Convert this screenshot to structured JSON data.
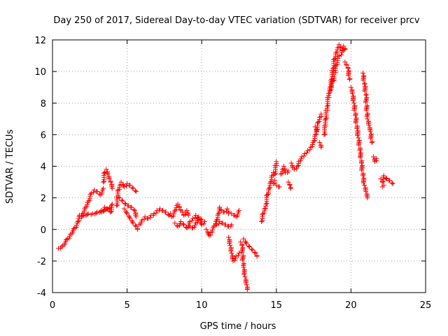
{
  "chart_data": {
    "type": "scatter",
    "title": "Day 250 of 2017, Sidereal Day-to-day VTEC variation (SDTVAR) for receiver prcv",
    "xlabel": "GPS time / hours",
    "ylabel": "SDTVAR / TECUs",
    "xlim": [
      0,
      25
    ],
    "ylim": [
      -4,
      12
    ],
    "xticks": [
      0,
      5,
      10,
      15,
      20,
      25
    ],
    "yticks": [
      -4,
      -2,
      0,
      2,
      4,
      6,
      8,
      10,
      12
    ],
    "grid": true,
    "marker": "plus",
    "color": "#ff0000",
    "series": [
      {
        "segments": [
          [
            [
              0.4,
              -1.2
            ],
            [
              0.7,
              -1.0
            ],
            [
              1.0,
              -0.6
            ],
            [
              1.2,
              -0.3
            ],
            [
              1.5,
              0.1
            ],
            [
              1.7,
              0.5
            ],
            [
              1.8,
              0.9
            ],
            [
              2.0,
              1.0
            ],
            [
              2.2,
              1.4
            ],
            [
              2.4,
              1.8
            ],
            [
              2.6,
              2.3
            ],
            [
              2.8,
              2.5
            ],
            [
              3.0,
              2.4
            ],
            [
              3.2,
              2.2
            ],
            [
              3.4,
              2.6
            ]
          ],
          [
            [
              1.8,
              0.8
            ],
            [
              2.1,
              0.9
            ],
            [
              2.4,
              1.0
            ],
            [
              2.7,
              1.0
            ],
            [
              3.0,
              1.1
            ],
            [
              3.3,
              1.2
            ],
            [
              3.6,
              1.3
            ],
            [
              3.9,
              1.4
            ]
          ],
          [
            [
              3.4,
              3.0
            ],
            [
              3.5,
              3.6
            ],
            [
              3.6,
              3.8
            ],
            [
              3.7,
              3.5
            ],
            [
              3.8,
              3.2
            ],
            [
              3.9,
              3.0
            ],
            [
              4.0,
              2.6
            ]
          ],
          [
            [
              3.3,
              1.1
            ],
            [
              3.5,
              1.4
            ],
            [
              3.7,
              1.3
            ],
            [
              3.9,
              1.1
            ],
            [
              4.0,
              1.6
            ]
          ],
          [
            [
              4.3,
              1.5
            ],
            [
              4.4,
              2.5
            ],
            [
              4.5,
              2.8
            ],
            [
              4.6,
              3.0
            ],
            [
              4.8,
              2.7
            ],
            [
              5.0,
              2.9
            ],
            [
              5.2,
              2.8
            ],
            [
              5.4,
              2.6
            ],
            [
              5.6,
              2.4
            ]
          ],
          [
            [
              4.5,
              2.0
            ],
            [
              4.7,
              1.8
            ],
            [
              4.9,
              1.6
            ],
            [
              5.1,
              1.5
            ],
            [
              5.3,
              1.4
            ],
            [
              5.5,
              1.2
            ],
            [
              5.6,
              0.8
            ]
          ],
          [
            [
              4.8,
              1.3
            ],
            [
              5.0,
              1.0
            ],
            [
              5.2,
              0.7
            ],
            [
              5.4,
              0.4
            ],
            [
              5.6,
              0.2
            ],
            [
              5.7,
              0.0
            ]
          ],
          [
            [
              5.8,
              0.3
            ],
            [
              6.0,
              0.6
            ],
            [
              6.2,
              0.8
            ],
            [
              6.4,
              0.7
            ],
            [
              6.6,
              0.9
            ],
            [
              6.8,
              1.0
            ],
            [
              7.0,
              1.2
            ],
            [
              7.2,
              1.3
            ],
            [
              7.4,
              1.2
            ],
            [
              7.6,
              1.1
            ],
            [
              7.8,
              0.9
            ]
          ],
          [
            [
              7.9,
              1.0
            ],
            [
              8.0,
              0.8
            ],
            [
              8.2,
              1.2
            ],
            [
              8.3,
              1.5
            ],
            [
              8.4,
              1.6
            ],
            [
              8.5,
              1.4
            ],
            [
              8.6,
              1.2
            ],
            [
              8.7,
              1.1
            ],
            [
              8.8,
              0.9
            ],
            [
              8.9,
              1.1
            ],
            [
              9.0,
              1.2
            ],
            [
              9.1,
              0.9
            ]
          ],
          [
            [
              8.2,
              0.4
            ],
            [
              8.4,
              0.2
            ],
            [
              8.6,
              0.5
            ],
            [
              8.8,
              0.3
            ],
            [
              9.0,
              0.1
            ],
            [
              9.2,
              0.5
            ],
            [
              9.4,
              0.7
            ],
            [
              9.6,
              0.9
            ],
            [
              9.8,
              0.6
            ],
            [
              10.0,
              0.3
            ],
            [
              10.2,
              0.5
            ]
          ],
          [
            [
              9.2,
              0.2
            ],
            [
              9.4,
              0.1
            ],
            [
              9.6,
              0.4
            ],
            [
              9.8,
              0.8
            ],
            [
              10.0,
              0.6
            ]
          ],
          [
            [
              10.3,
              0.0
            ],
            [
              10.5,
              -0.4
            ],
            [
              10.6,
              -0.2
            ],
            [
              10.8,
              0.2
            ],
            [
              11.0,
              0.6
            ],
            [
              11.1,
              1.0
            ],
            [
              11.2,
              1.4
            ],
            [
              11.3,
              1.2
            ],
            [
              11.5,
              1.1
            ],
            [
              11.7,
              1.3
            ],
            [
              11.8,
              1.0
            ]
          ],
          [
            [
              11.0,
              0.3
            ],
            [
              11.2,
              0.5
            ],
            [
              11.4,
              0.4
            ],
            [
              11.6,
              0.3
            ],
            [
              11.8,
              0.2
            ],
            [
              12.0,
              0.3
            ]
          ],
          [
            [
              12.0,
              1.0
            ],
            [
              12.2,
              0.9
            ],
            [
              12.3,
              0.8
            ],
            [
              12.5,
              1.2
            ]
          ],
          [
            [
              11.8,
              -0.5
            ],
            [
              11.9,
              -1.0
            ],
            [
              12.0,
              -1.5
            ],
            [
              12.1,
              -2.0
            ],
            [
              12.3,
              -1.7
            ],
            [
              12.5,
              -1.5
            ]
          ],
          [
            [
              12.6,
              -0.8
            ],
            [
              12.7,
              -1.0
            ],
            [
              12.8,
              -2.4
            ],
            [
              12.9,
              -3.0
            ],
            [
              13.0,
              -3.5
            ],
            [
              13.05,
              -3.8
            ]
          ],
          [
            [
              12.8,
              -0.6
            ],
            [
              13.0,
              -0.9
            ],
            [
              13.2,
              -1.1
            ],
            [
              13.4,
              -1.3
            ],
            [
              13.6,
              -1.5
            ],
            [
              13.7,
              -1.7
            ]
          ],
          [
            [
              14.0,
              0.5
            ],
            [
              14.1,
              1.0
            ],
            [
              14.2,
              1.3
            ],
            [
              14.3,
              1.6
            ],
            [
              14.4,
              2.2
            ],
            [
              14.5,
              2.6
            ],
            [
              14.6,
              3.0
            ],
            [
              14.7,
              3.4
            ],
            [
              14.8,
              3.6
            ],
            [
              14.9,
              3.5
            ],
            [
              15.0,
              4.3
            ]
          ],
          [
            [
              14.8,
              2.9
            ],
            [
              14.9,
              3.1
            ]
          ],
          [
            [
              15.0,
              2.8
            ],
            [
              15.2,
              2.7
            ]
          ],
          [
            [
              15.3,
              3.5
            ],
            [
              15.4,
              3.8
            ],
            [
              15.5,
              4.0
            ],
            [
              15.6,
              3.6
            ],
            [
              15.8,
              3.7
            ]
          ],
          [
            [
              15.8,
              3.0
            ],
            [
              15.9,
              2.8
            ],
            [
              15.95,
              2.6
            ]
          ],
          [
            [
              16.0,
              4.2
            ],
            [
              16.1,
              3.9
            ]
          ],
          [
            [
              16.2,
              3.8
            ],
            [
              16.4,
              4.0
            ],
            [
              16.5,
              4.3
            ],
            [
              16.7,
              4.6
            ],
            [
              16.9,
              4.8
            ],
            [
              17.1,
              5.0
            ],
            [
              17.3,
              5.2
            ],
            [
              17.5,
              5.6
            ],
            [
              17.6,
              6.0
            ],
            [
              17.7,
              6.3
            ],
            [
              17.8,
              6.8
            ],
            [
              17.9,
              7.1
            ],
            [
              18.0,
              7.3
            ]
          ],
          [
            [
              17.6,
              6.5
            ],
            [
              17.7,
              6.2
            ]
          ],
          [
            [
              17.9,
              5.5
            ],
            [
              18.0,
              5.2
            ]
          ],
          [
            [
              18.2,
              6.0
            ],
            [
              18.3,
              7.0
            ],
            [
              18.4,
              7.8
            ],
            [
              18.5,
              8.6
            ],
            [
              18.6,
              9.0
            ],
            [
              18.7,
              9.5
            ],
            [
              18.8,
              10.2
            ],
            [
              18.9,
              10.8
            ],
            [
              19.0,
              11.2
            ],
            [
              19.1,
              11.5
            ],
            [
              19.2,
              11.7
            ],
            [
              19.3,
              11.5
            ],
            [
              19.4,
              11.3
            ],
            [
              19.5,
              11.6
            ],
            [
              19.6,
              11.4
            ]
          ],
          [
            [
              18.6,
              8.8
            ],
            [
              18.8,
              9.4
            ],
            [
              19.0,
              10.4
            ],
            [
              19.2,
              11.0
            ],
            [
              19.4,
              11.2
            ]
          ],
          [
            [
              19.6,
              10.6
            ],
            [
              19.7,
              10.4
            ],
            [
              19.8,
              10.2
            ],
            [
              19.9,
              9.5
            ]
          ],
          [
            [
              20.0,
              9.0
            ],
            [
              20.1,
              8.6
            ],
            [
              20.2,
              8.0
            ],
            [
              20.3,
              7.2
            ],
            [
              20.4,
              6.4
            ],
            [
              20.5,
              5.8
            ],
            [
              20.6,
              5.0
            ],
            [
              20.7,
              4.2
            ],
            [
              20.8,
              3.4
            ],
            [
              20.9,
              2.8
            ],
            [
              21.0,
              2.4
            ],
            [
              21.1,
              2.0
            ]
          ],
          [
            [
              20.8,
              9.9
            ],
            [
              20.9,
              9.2
            ],
            [
              21.0,
              8.5
            ],
            [
              21.1,
              7.0
            ],
            [
              21.2,
              6.6
            ],
            [
              21.3,
              6.2
            ],
            [
              21.4,
              5.5
            ]
          ],
          [
            [
              21.5,
              4.6
            ],
            [
              21.6,
              4.3
            ],
            [
              21.7,
              4.5
            ]
          ],
          [
            [
              22.0,
              3.2
            ],
            [
              22.1,
              3.0
            ],
            [
              22.2,
              3.4
            ],
            [
              22.4,
              3.2
            ],
            [
              22.6,
              3.1
            ],
            [
              22.8,
              2.9
            ]
          ],
          [
            [
              22.1,
              2.7
            ],
            [
              22.2,
              2.8
            ]
          ]
        ]
      }
    ]
  }
}
